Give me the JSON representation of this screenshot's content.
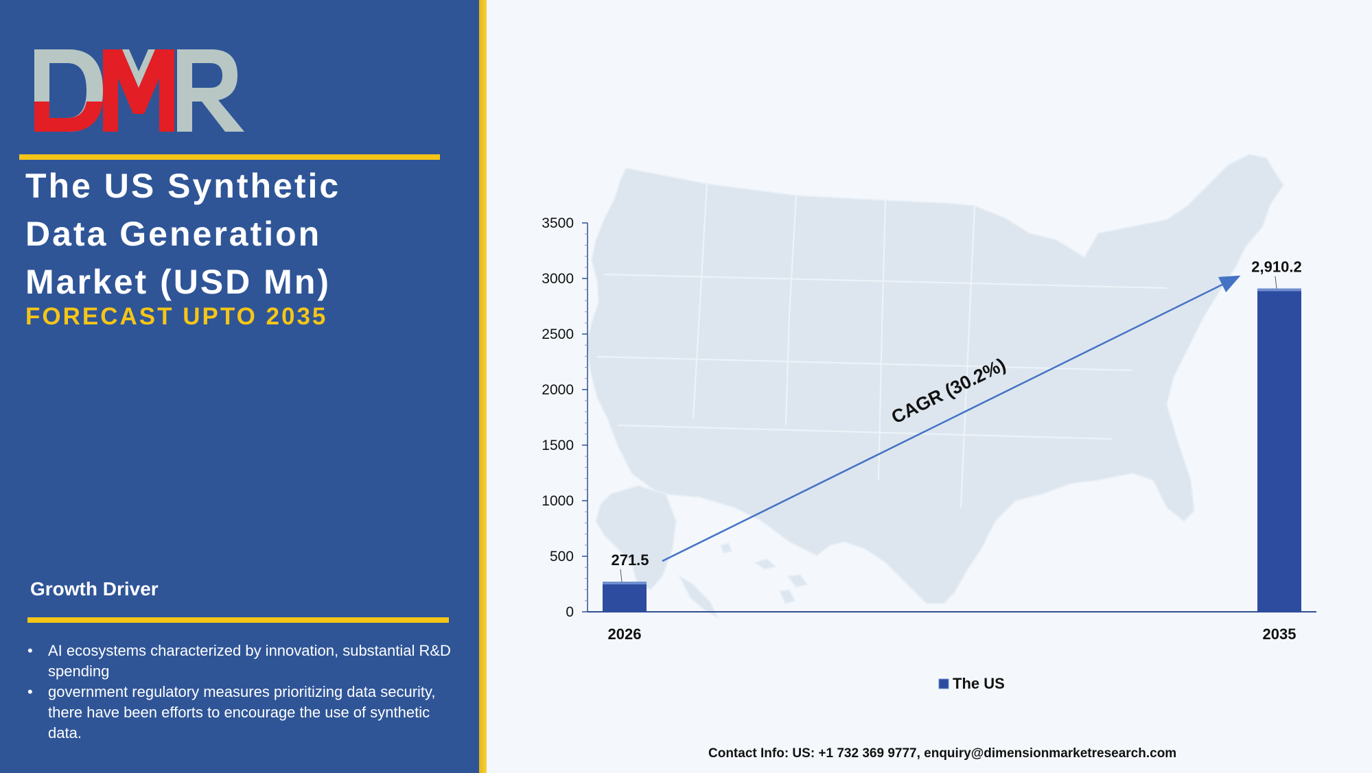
{
  "branding": {
    "logo_text": "DMR",
    "colors": {
      "panel": "#2f5597",
      "accent": "#f5c518",
      "logo_red": "#e31e24",
      "logo_gray": "#b8c7c4",
      "bar": "#2e4c9f"
    }
  },
  "sidebar": {
    "title_lines": [
      "The US Synthetic",
      "Data Generation",
      "Market (USD Mn)"
    ],
    "subtitle": "FORECAST UPTO 2035",
    "growth_driver": {
      "heading": "Growth Driver",
      "items": [
        "AI ecosystems characterized by innovation, substantial R&D spending",
        "government regulatory measures prioritizing data security, there have been efforts to encourage the use of synthetic data."
      ]
    }
  },
  "chart_data": {
    "type": "bar",
    "categories": [
      "2026",
      "2035"
    ],
    "series": [
      {
        "name": "The US",
        "values": [
          271.5,
          2910.2
        ]
      }
    ],
    "data_labels": [
      "271.5",
      "2,910.2"
    ],
    "ylim": [
      0,
      3500
    ],
    "yticks": [
      0,
      500,
      1000,
      1500,
      2000,
      2500,
      3000,
      3500
    ],
    "annotation": "CAGR (30.2%)",
    "legend": {
      "position": "bottom",
      "label": "The US"
    },
    "background": "us-map-silhouette",
    "grid": false
  },
  "footer": {
    "contact": "Contact Info: US: +1 732 369 9777, enquiry@dimensionmarketresearch.com"
  }
}
